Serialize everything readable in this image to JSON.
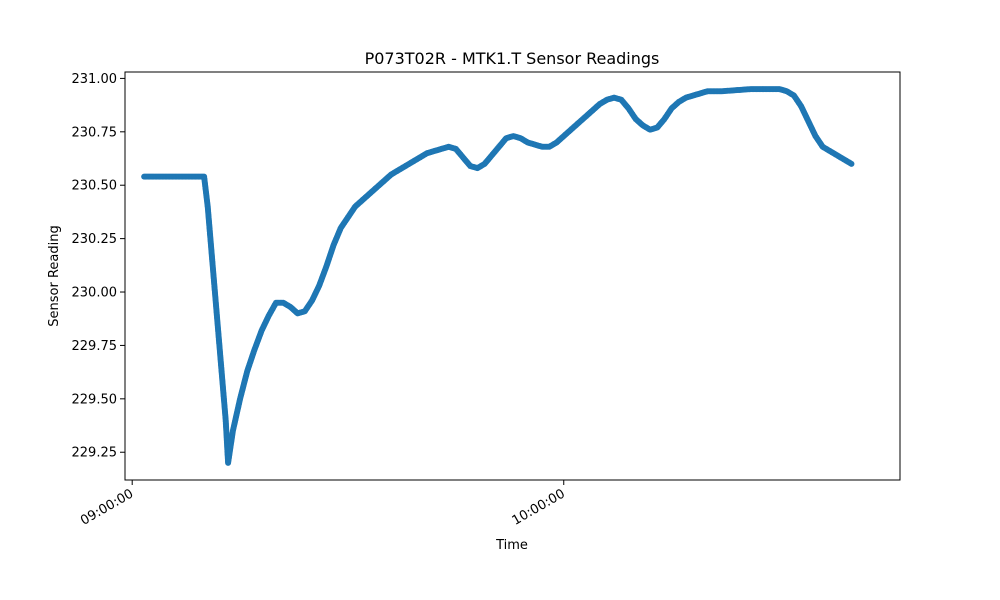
{
  "chart_data": {
    "type": "scatter",
    "title": "P073T02R - MTK1.T Sensor Readings",
    "xlabel": "Time",
    "ylabel": "Sensor Reading",
    "xlim": [
      "08:59:00",
      "10:46:45"
    ],
    "ylim": [
      229.12,
      231.03
    ],
    "grid": false,
    "x_ticks": [
      "09:00:00",
      "10:00:00"
    ],
    "y_ticks": [
      "229.25",
      "229.50",
      "229.75",
      "230.00",
      "230.25",
      "230.50",
      "230.75",
      "231.00"
    ],
    "series": [
      {
        "color": "#1f77b4",
        "marker": "circle",
        "points": [
          [
            "09:01:40",
            230.54
          ],
          [
            "09:03:00",
            230.54
          ],
          [
            "09:05:00",
            230.54
          ],
          [
            "09:07:00",
            230.54
          ],
          [
            "09:09:00",
            230.54
          ],
          [
            "09:10:00",
            230.54
          ],
          [
            "09:10:30",
            230.4
          ],
          [
            "09:11:00",
            230.2
          ],
          [
            "09:11:30",
            230.0
          ],
          [
            "09:12:00",
            229.8
          ],
          [
            "09:12:30",
            229.6
          ],
          [
            "09:13:00",
            229.4
          ],
          [
            "09:13:20",
            229.2
          ],
          [
            "09:14:00",
            229.35
          ],
          [
            "09:15:00",
            229.5
          ],
          [
            "09:16:00",
            229.63
          ],
          [
            "09:17:00",
            229.73
          ],
          [
            "09:18:00",
            229.82
          ],
          [
            "09:19:00",
            229.89
          ],
          [
            "09:20:00",
            229.95
          ],
          [
            "09:21:00",
            229.95
          ],
          [
            "09:22:00",
            229.93
          ],
          [
            "09:23:00",
            229.9
          ],
          [
            "09:24:00",
            229.91
          ],
          [
            "09:25:00",
            229.96
          ],
          [
            "09:26:00",
            230.03
          ],
          [
            "09:27:00",
            230.12
          ],
          [
            "09:28:00",
            230.22
          ],
          [
            "09:29:00",
            230.3
          ],
          [
            "09:30:00",
            230.35
          ],
          [
            "09:31:00",
            230.4
          ],
          [
            "09:32:00",
            230.43
          ],
          [
            "09:33:00",
            230.46
          ],
          [
            "09:34:00",
            230.49
          ],
          [
            "09:35:00",
            230.52
          ],
          [
            "09:36:00",
            230.55
          ],
          [
            "09:37:00",
            230.57
          ],
          [
            "09:38:00",
            230.59
          ],
          [
            "09:39:00",
            230.61
          ],
          [
            "09:40:00",
            230.63
          ],
          [
            "09:41:00",
            230.65
          ],
          [
            "09:42:00",
            230.66
          ],
          [
            "09:43:00",
            230.67
          ],
          [
            "09:44:00",
            230.68
          ],
          [
            "09:45:00",
            230.67
          ],
          [
            "09:46:00",
            230.63
          ],
          [
            "09:47:00",
            230.59
          ],
          [
            "09:48:00",
            230.58
          ],
          [
            "09:49:00",
            230.6
          ],
          [
            "09:50:00",
            230.64
          ],
          [
            "09:51:00",
            230.68
          ],
          [
            "09:52:00",
            230.72
          ],
          [
            "09:53:00",
            230.73
          ],
          [
            "09:54:00",
            230.72
          ],
          [
            "09:55:00",
            230.7
          ],
          [
            "09:56:00",
            230.69
          ],
          [
            "09:57:00",
            230.68
          ],
          [
            "09:58:00",
            230.68
          ],
          [
            "09:59:00",
            230.7
          ],
          [
            "10:00:00",
            230.73
          ],
          [
            "10:01:00",
            230.76
          ],
          [
            "10:02:00",
            230.79
          ],
          [
            "10:03:00",
            230.82
          ],
          [
            "10:04:00",
            230.85
          ],
          [
            "10:05:00",
            230.88
          ],
          [
            "10:06:00",
            230.9
          ],
          [
            "10:07:00",
            230.91
          ],
          [
            "10:08:00",
            230.9
          ],
          [
            "10:09:00",
            230.86
          ],
          [
            "10:10:00",
            230.81
          ],
          [
            "10:11:00",
            230.78
          ],
          [
            "10:12:00",
            230.76
          ],
          [
            "10:13:00",
            230.77
          ],
          [
            "10:14:00",
            230.81
          ],
          [
            "10:15:00",
            230.86
          ],
          [
            "10:16:00",
            230.89
          ],
          [
            "10:17:00",
            230.91
          ],
          [
            "10:18:00",
            230.92
          ],
          [
            "10:19:00",
            230.93
          ],
          [
            "10:20:00",
            230.94
          ],
          [
            "10:22:00",
            230.94
          ],
          [
            "10:24:00",
            230.945
          ],
          [
            "10:26:00",
            230.95
          ],
          [
            "10:28:00",
            230.95
          ],
          [
            "10:30:00",
            230.95
          ],
          [
            "10:31:00",
            230.94
          ],
          [
            "10:32:00",
            230.92
          ],
          [
            "10:33:00",
            230.87
          ],
          [
            "10:34:00",
            230.8
          ],
          [
            "10:35:00",
            230.73
          ],
          [
            "10:36:00",
            230.68
          ],
          [
            "10:37:00",
            230.66
          ],
          [
            "10:38:00",
            230.64
          ],
          [
            "10:39:00",
            230.62
          ],
          [
            "10:40:00",
            230.6
          ]
        ]
      }
    ]
  }
}
